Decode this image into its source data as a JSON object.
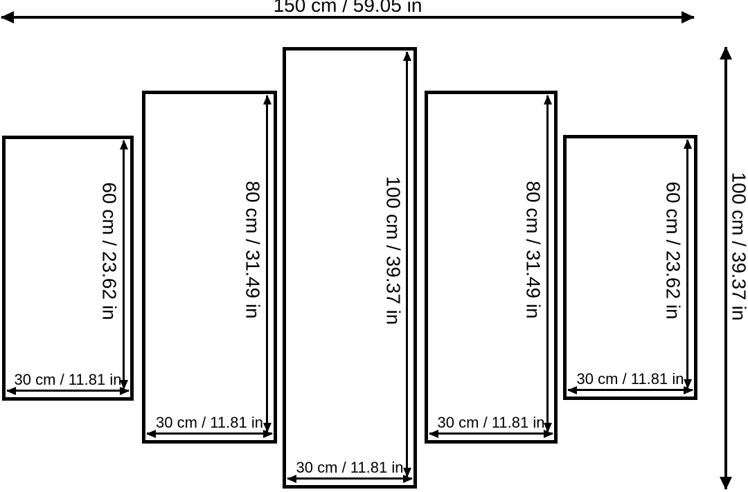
{
  "diagram": {
    "description": "5-panel split canvas dimensions diagram",
    "colors": {
      "line": "#000000",
      "background": "#ffffff"
    },
    "overall": {
      "width_label": "150 cm / 59.05 in",
      "height_label": "100 cm / 39.37 in"
    },
    "panels": [
      {
        "position": "far-left",
        "height_label": "60 cm / 23.62 in",
        "width_label": "30 cm / 11.81 in"
      },
      {
        "position": "left",
        "height_label": "80 cm / 31.49 in",
        "width_label": "30 cm / 11.81 in"
      },
      {
        "position": "center",
        "height_label": "100 cm / 39.37 in",
        "width_label": "30 cm / 11.81 in"
      },
      {
        "position": "right",
        "height_label": "80 cm / 31.49 in",
        "width_label": "30 cm / 11.81 in"
      },
      {
        "position": "far-right",
        "height_label": "60 cm / 23.62 in",
        "width_label": "30 cm / 11.81 in"
      }
    ]
  }
}
